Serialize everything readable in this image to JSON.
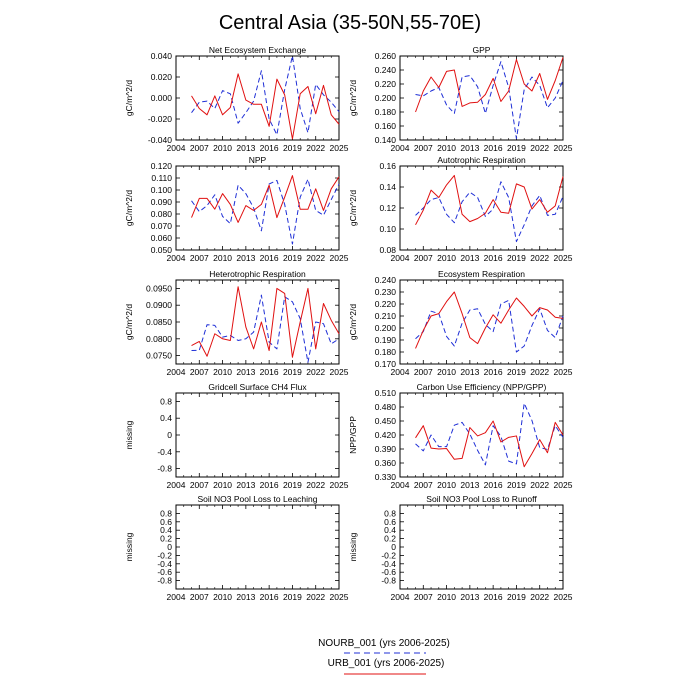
{
  "title": "Central Asia (35-50N,55-70E)",
  "legend": {
    "nourb_label": "NOURB_001 (yrs 2006-2025)",
    "urb_label": "URB_001 (yrs 2006-2025)"
  },
  "colors": {
    "nourb": "#1f2fd6",
    "urb": "#e01010"
  },
  "chart_data": [
    {
      "type": "line",
      "title": "Net Ecosystem Exchange",
      "ylabel": "gC/m^2/d",
      "xlim": [
        2004,
        2025
      ],
      "ylim": [
        -0.04,
        0.04
      ],
      "xticks": [
        2004,
        2007,
        2010,
        2013,
        2016,
        2019,
        2022,
        2025
      ],
      "yticks": [
        -0.04,
        -0.02,
        0.0,
        0.02,
        0.04
      ],
      "yticklabels": [
        "-0.040",
        "-0.020",
        "0.000",
        "0.020",
        "0.040"
      ],
      "x": [
        2006,
        2007,
        2008,
        2009,
        2010,
        2011,
        2012,
        2013,
        2014,
        2015,
        2016,
        2017,
        2018,
        2019,
        2020,
        2021,
        2022,
        2023,
        2024,
        2025
      ],
      "series": [
        {
          "name": "NOURB_001 (yrs 2006-2025)",
          "style": "dashed",
          "values": [
            -0.014,
            -0.004,
            -0.003,
            -0.01,
            0.007,
            0.004,
            -0.024,
            -0.014,
            -0.003,
            0.026,
            -0.02,
            -0.035,
            0.008,
            0.04,
            -0.01,
            -0.033,
            0.013,
            0.003,
            -0.004,
            -0.013
          ]
        },
        {
          "name": "URB_001 (yrs 2006-2025)",
          "style": "solid",
          "values": [
            0.002,
            -0.01,
            -0.016,
            0.002,
            -0.016,
            -0.009,
            0.023,
            -0.002,
            -0.006,
            -0.006,
            -0.027,
            0.018,
            0.003,
            -0.039,
            0.004,
            0.011,
            -0.015,
            0.012,
            -0.016,
            -0.025
          ]
        }
      ]
    },
    {
      "type": "line",
      "title": "GPP",
      "ylabel": "gC/m^2/d",
      "xlim": [
        2004,
        2025
      ],
      "ylim": [
        0.14,
        0.26
      ],
      "xticks": [
        2004,
        2007,
        2010,
        2013,
        2016,
        2019,
        2022,
        2025
      ],
      "yticks": [
        0.14,
        0.16,
        0.18,
        0.2,
        0.22,
        0.24,
        0.26
      ],
      "yticklabels": [
        "0.140",
        "0.160",
        "0.180",
        "0.200",
        "0.220",
        "0.240",
        "0.260"
      ],
      "x": [
        2006,
        2007,
        2008,
        2009,
        2010,
        2011,
        2012,
        2013,
        2014,
        2015,
        2016,
        2017,
        2018,
        2019,
        2020,
        2021,
        2022,
        2023,
        2024,
        2025
      ],
      "series": [
        {
          "name": "NOURB_001 (yrs 2006-2025)",
          "style": "dashed",
          "values": [
            0.205,
            0.203,
            0.21,
            0.215,
            0.19,
            0.178,
            0.23,
            0.232,
            0.216,
            0.178,
            0.218,
            0.252,
            0.215,
            0.142,
            0.212,
            0.23,
            0.218,
            0.186,
            0.2,
            0.225
          ]
        },
        {
          "name": "URB_001 (yrs 2006-2025)",
          "style": "solid",
          "values": [
            0.18,
            0.21,
            0.23,
            0.215,
            0.238,
            0.24,
            0.188,
            0.193,
            0.194,
            0.205,
            0.228,
            0.195,
            0.21,
            0.255,
            0.22,
            0.21,
            0.235,
            0.198,
            0.225,
            0.258
          ]
        }
      ]
    },
    {
      "type": "line",
      "title": "NPP",
      "ylabel": "gC/m^2/d",
      "xlim": [
        2004,
        2025
      ],
      "ylim": [
        0.05,
        0.12
      ],
      "xticks": [
        2004,
        2007,
        2010,
        2013,
        2016,
        2019,
        2022,
        2025
      ],
      "yticks": [
        0.05,
        0.06,
        0.07,
        0.08,
        0.09,
        0.1,
        0.11,
        0.12
      ],
      "yticklabels": [
        "0.050",
        "0.060",
        "0.070",
        "0.080",
        "0.090",
        "0.100",
        "0.110",
        "0.120"
      ],
      "x": [
        2006,
        2007,
        2008,
        2009,
        2010,
        2011,
        2012,
        2013,
        2014,
        2015,
        2016,
        2017,
        2018,
        2019,
        2020,
        2021,
        2022,
        2023,
        2024,
        2025
      ],
      "series": [
        {
          "name": "NOURB_001 (yrs 2006-2025)",
          "style": "dashed",
          "values": [
            0.091,
            0.082,
            0.087,
            0.096,
            0.078,
            0.072,
            0.104,
            0.097,
            0.085,
            0.066,
            0.105,
            0.108,
            0.088,
            0.055,
            0.094,
            0.109,
            0.083,
            0.079,
            0.092,
            0.105
          ]
        },
        {
          "name": "URB_001 (yrs 2006-2025)",
          "style": "solid",
          "values": [
            0.077,
            0.093,
            0.093,
            0.084,
            0.097,
            0.088,
            0.073,
            0.087,
            0.083,
            0.088,
            0.104,
            0.077,
            0.094,
            0.112,
            0.084,
            0.084,
            0.101,
            0.083,
            0.101,
            0.111
          ]
        }
      ]
    },
    {
      "type": "line",
      "title": "Autotrophic Respiration",
      "ylabel": "gC/m^2/d",
      "xlim": [
        2004,
        2025
      ],
      "ylim": [
        0.08,
        0.16
      ],
      "xticks": [
        2004,
        2007,
        2010,
        2013,
        2016,
        2019,
        2022,
        2025
      ],
      "yticks": [
        0.08,
        0.1,
        0.12,
        0.14,
        0.16
      ],
      "yticklabels": [
        "0.08",
        "0.10",
        "0.12",
        "0.14",
        "0.16"
      ],
      "x": [
        2006,
        2007,
        2008,
        2009,
        2010,
        2011,
        2012,
        2013,
        2014,
        2015,
        2016,
        2017,
        2018,
        2019,
        2020,
        2021,
        2022,
        2023,
        2024,
        2025
      ],
      "series": [
        {
          "name": "NOURB_001 (yrs 2006-2025)",
          "style": "dashed",
          "values": [
            0.113,
            0.12,
            0.128,
            0.13,
            0.114,
            0.106,
            0.126,
            0.135,
            0.13,
            0.112,
            0.119,
            0.145,
            0.13,
            0.088,
            0.104,
            0.122,
            0.132,
            0.113,
            0.114,
            0.131
          ]
        },
        {
          "name": "URB_001 (yrs 2006-2025)",
          "style": "solid",
          "values": [
            0.104,
            0.118,
            0.137,
            0.13,
            0.142,
            0.151,
            0.114,
            0.107,
            0.11,
            0.115,
            0.128,
            0.116,
            0.115,
            0.143,
            0.14,
            0.119,
            0.128,
            0.116,
            0.122,
            0.15
          ]
        }
      ]
    },
    {
      "type": "line",
      "title": "Heterotrophic Respiration",
      "ylabel": "gC/m^2/d",
      "xlim": [
        2004,
        2025
      ],
      "ylim": [
        0.0725,
        0.0975
      ],
      "xticks": [
        2004,
        2007,
        2010,
        2013,
        2016,
        2019,
        2022,
        2025
      ],
      "yticks": [
        0.075,
        0.08,
        0.085,
        0.09,
        0.095
      ],
      "yticklabels": [
        "0.0750",
        "0.0800",
        "0.0850",
        "0.0900",
        "0.0950"
      ],
      "x": [
        2006,
        2007,
        2008,
        2009,
        2010,
        2011,
        2012,
        2013,
        2014,
        2015,
        2016,
        2017,
        2018,
        2019,
        2020,
        2021,
        2022,
        2023,
        2024,
        2025
      ],
      "series": [
        {
          "name": "NOURB_001 (yrs 2006-2025)",
          "style": "dashed",
          "values": [
            0.0765,
            0.0766,
            0.0842,
            0.084,
            0.0805,
            0.081,
            0.0795,
            0.08,
            0.082,
            0.093,
            0.079,
            0.077,
            0.0925,
            0.091,
            0.086,
            0.073,
            0.085,
            0.0845,
            0.0785,
            0.08
          ]
        },
        {
          "name": "URB_001 (yrs 2006-2025)",
          "style": "solid",
          "values": [
            0.078,
            0.0792,
            0.0748,
            0.0815,
            0.08,
            0.0795,
            0.0955,
            0.0835,
            0.077,
            0.085,
            0.0765,
            0.095,
            0.0935,
            0.0745,
            0.085,
            0.095,
            0.077,
            0.0905,
            0.0855,
            0.0815
          ]
        }
      ]
    },
    {
      "type": "line",
      "title": "Ecosystem Respiration",
      "ylabel": "gC/m^2/d",
      "xlim": [
        2004,
        2025
      ],
      "ylim": [
        0.17,
        0.24
      ],
      "xticks": [
        2004,
        2007,
        2010,
        2013,
        2016,
        2019,
        2022,
        2025
      ],
      "yticks": [
        0.17,
        0.18,
        0.19,
        0.2,
        0.21,
        0.22,
        0.23,
        0.24
      ],
      "yticklabels": [
        "0.170",
        "0.180",
        "0.190",
        "0.200",
        "0.210",
        "0.220",
        "0.230",
        "0.240"
      ],
      "x": [
        2006,
        2007,
        2008,
        2009,
        2010,
        2011,
        2012,
        2013,
        2014,
        2015,
        2016,
        2017,
        2018,
        2019,
        2020,
        2021,
        2022,
        2023,
        2024,
        2025
      ],
      "series": [
        {
          "name": "NOURB_001 (yrs 2006-2025)",
          "style": "dashed",
          "values": [
            0.191,
            0.197,
            0.214,
            0.212,
            0.193,
            0.185,
            0.204,
            0.215,
            0.216,
            0.203,
            0.197,
            0.22,
            0.223,
            0.18,
            0.185,
            0.202,
            0.216,
            0.198,
            0.192,
            0.21
          ]
        },
        {
          "name": "URB_001 (yrs 2006-2025)",
          "style": "solid",
          "values": [
            0.183,
            0.198,
            0.21,
            0.212,
            0.222,
            0.23,
            0.212,
            0.192,
            0.187,
            0.2,
            0.211,
            0.204,
            0.215,
            0.225,
            0.218,
            0.21,
            0.217,
            0.215,
            0.209,
            0.208
          ]
        }
      ]
    },
    {
      "type": "line",
      "title": "Gridcell Surface CH4 Flux",
      "ylabel": "missing",
      "xlim": [
        2004,
        2025
      ],
      "ylim": [
        -1,
        1
      ],
      "xticks": [
        2004,
        2007,
        2010,
        2013,
        2016,
        2019,
        2022,
        2025
      ],
      "yticks": [
        -0.8,
        -0.4,
        0,
        0.4,
        0.8
      ],
      "yticklabels": [
        "-0.8",
        "-0.4",
        "0",
        "0.4",
        "0.8"
      ],
      "x": [],
      "series": []
    },
    {
      "type": "line",
      "title": "Carbon Use Efficiency (NPP/GPP)",
      "ylabel": "NPP/GPP",
      "xlim": [
        2004,
        2025
      ],
      "ylim": [
        0.33,
        0.51
      ],
      "xticks": [
        2004,
        2007,
        2010,
        2013,
        2016,
        2019,
        2022,
        2025
      ],
      "yticks": [
        0.33,
        0.36,
        0.39,
        0.42,
        0.45,
        0.48,
        0.51
      ],
      "yticklabels": [
        "0.330",
        "0.360",
        "0.390",
        "0.420",
        "0.450",
        "0.480",
        "0.510"
      ],
      "x": [
        2006,
        2007,
        2008,
        2009,
        2010,
        2011,
        2012,
        2013,
        2014,
        2015,
        2016,
        2017,
        2018,
        2019,
        2020,
        2021,
        2022,
        2023,
        2024,
        2025
      ],
      "series": [
        {
          "name": "NOURB_001 (yrs 2006-2025)",
          "style": "dashed",
          "values": [
            0.401,
            0.386,
            0.42,
            0.395,
            0.395,
            0.441,
            0.447,
            0.422,
            0.387,
            0.356,
            0.44,
            0.417,
            0.364,
            0.358,
            0.488,
            0.451,
            0.393,
            0.389,
            0.44,
            0.415
          ]
        },
        {
          "name": "URB_001 (yrs 2006-2025)",
          "style": "solid",
          "values": [
            0.414,
            0.44,
            0.392,
            0.39,
            0.391,
            0.368,
            0.37,
            0.436,
            0.418,
            0.425,
            0.45,
            0.405,
            0.415,
            0.418,
            0.352,
            0.38,
            0.41,
            0.382,
            0.447,
            0.42
          ]
        }
      ]
    },
    {
      "type": "line",
      "title": "Soil NO3 Pool Loss to Leaching",
      "ylabel": "missing",
      "xlim": [
        2004,
        2025
      ],
      "ylim": [
        -1,
        1
      ],
      "xticks": [
        2004,
        2007,
        2010,
        2013,
        2016,
        2019,
        2022,
        2025
      ],
      "yticks": [
        -0.8,
        -0.6,
        -0.4,
        -0.2,
        0,
        0.2,
        0.4,
        0.6,
        0.8
      ],
      "yticklabels": [
        "-0.8",
        "-0.6",
        "-0.4",
        "-0.2",
        "0",
        "0.2",
        "0.4",
        "0.6",
        "0.8"
      ],
      "x": [],
      "series": []
    },
    {
      "type": "line",
      "title": "Soil NO3 Pool Loss to Runoff",
      "ylabel": "missing",
      "xlim": [
        2004,
        2025
      ],
      "ylim": [
        -1,
        1
      ],
      "xticks": [
        2004,
        2007,
        2010,
        2013,
        2016,
        2019,
        2022,
        2025
      ],
      "yticks": [
        -0.8,
        -0.6,
        -0.4,
        -0.2,
        0,
        0.2,
        0.4,
        0.6,
        0.8
      ],
      "yticklabels": [
        "-0.8",
        "-0.6",
        "-0.4",
        "-0.2",
        "0",
        "0.2",
        "0.4",
        "0.6",
        "0.8"
      ],
      "x": [],
      "series": []
    }
  ]
}
